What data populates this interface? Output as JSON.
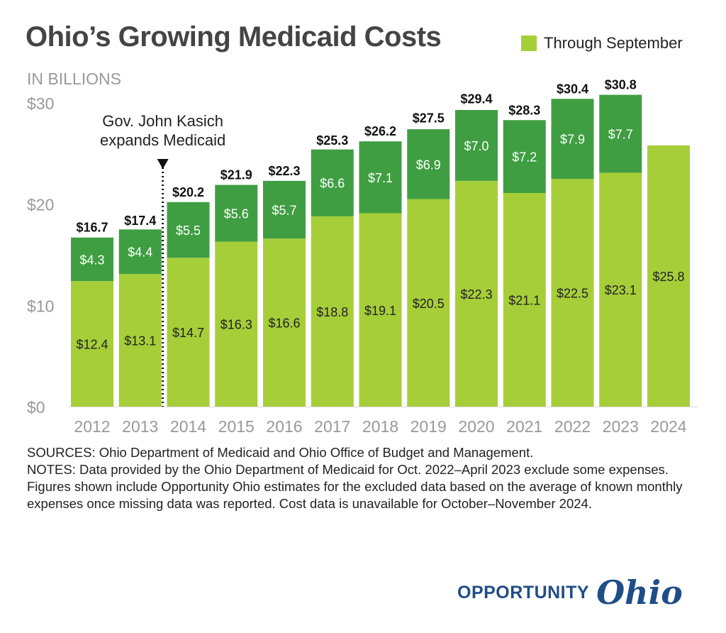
{
  "title": "Ohio’s Growing Medicaid Costs",
  "unit_label": "IN BILLIONS",
  "legend": [
    {
      "label": "Through September",
      "color": "#a6ce39"
    }
  ],
  "annotation": {
    "text_line1": "Gov. John Kasich",
    "text_line2": "expands Medicaid",
    "between": [
      "2013",
      "2014"
    ]
  },
  "notes": {
    "sources": "SOURCES: Ohio Department of Medicaid and Ohio Office of Budget and Management.",
    "notes": "NOTES: Data provided by the Ohio Department of Medicaid for Oct. 2022–April 2023 exclude some expenses. Figures shown include Opportunity Ohio estimates for the excluded data based on the average of known monthly expenses once missing data was reported. Cost data is unavailable for October–November 2024."
  },
  "logo": {
    "text1": "OPPORTUNITY",
    "text2": "Ohio"
  },
  "chart_data": {
    "type": "bar",
    "stacked": true,
    "categories": [
      "2012",
      "2013",
      "2014",
      "2015",
      "2016",
      "2017",
      "2018",
      "2019",
      "2020",
      "2021",
      "2022",
      "2023",
      "2024"
    ],
    "series": [
      {
        "name": "Through September",
        "color": "#a6ce39",
        "values": [
          12.4,
          13.1,
          14.7,
          16.3,
          16.6,
          18.8,
          19.1,
          20.5,
          22.3,
          21.1,
          22.5,
          23.1,
          25.8
        ],
        "labels": [
          "$12.4",
          "$13.1",
          "$14.7",
          "$16.3",
          "$16.6",
          "$18.8",
          "$19.1",
          "$20.5",
          "$22.3",
          "$21.1",
          "$22.5",
          "$23.1",
          "$25.8"
        ]
      },
      {
        "color": "#3f9e41",
        "values": [
          4.3,
          4.4,
          5.5,
          5.6,
          5.7,
          6.6,
          7.1,
          6.9,
          7.0,
          7.2,
          7.9,
          7.7,
          null
        ],
        "labels": [
          "$4.3",
          "$4.4",
          "$5.5",
          "$5.6",
          "$5.7",
          "$6.6",
          "$7.1",
          "$6.9",
          "$7.0",
          "$7.2",
          "$7.9",
          "$7.7",
          null
        ]
      }
    ],
    "totals": [
      "$16.7",
      "$17.4",
      "$20.2",
      "$21.9",
      "$22.3",
      "$25.3",
      "$26.2",
      "$27.5",
      "$29.4",
      "$28.3",
      "$30.4",
      "$30.8",
      null
    ],
    "total_values": [
      16.7,
      17.4,
      20.2,
      21.9,
      22.3,
      25.3,
      26.2,
      27.5,
      29.4,
      28.3,
      30.4,
      30.8,
      null
    ],
    "ylim": [
      0,
      30
    ],
    "yticks": [
      0,
      10,
      20,
      30
    ],
    "ytick_labels": [
      "$0",
      "$10",
      "$20",
      "$30"
    ],
    "grid": false
  }
}
